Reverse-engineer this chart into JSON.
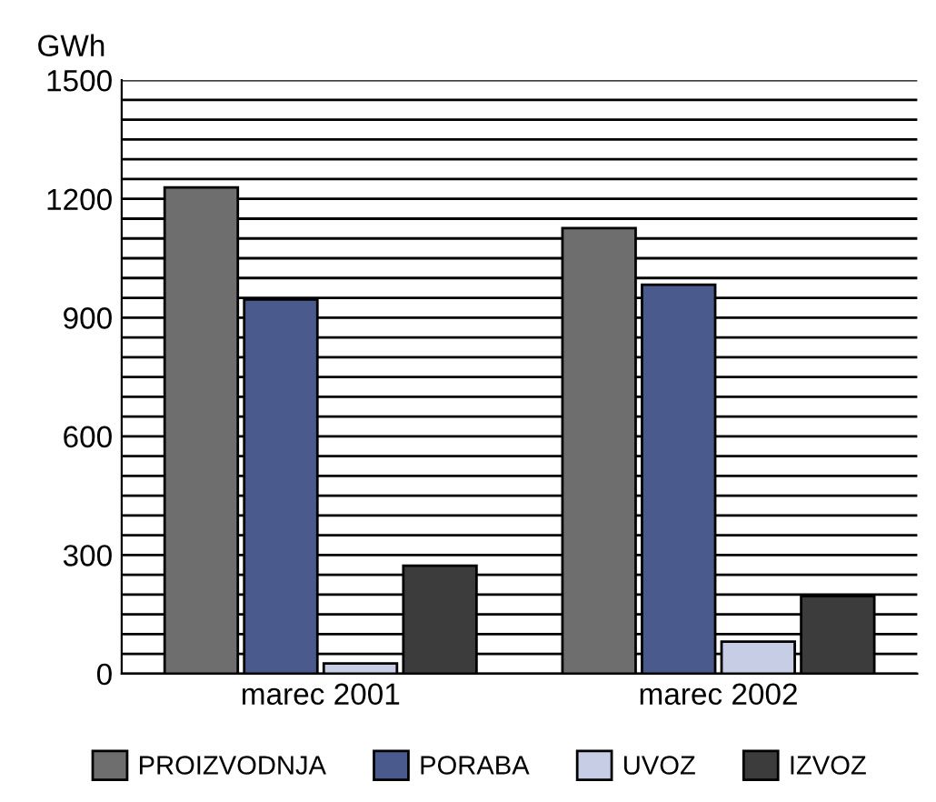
{
  "chart_data": {
    "type": "bar",
    "ylabel": "GWh",
    "categories": [
      "marec 2001",
      "marec 2002"
    ],
    "series": [
      {
        "name": "PROIZVODNJA",
        "color": "#6e6e6e",
        "values": [
          1229,
          1126
        ]
      },
      {
        "name": "PORABA",
        "color": "#4a5a8c",
        "values": [
          946,
          983
        ]
      },
      {
        "name": "UVOZ",
        "color": "#c8cde6",
        "values": [
          26,
          81
        ]
      },
      {
        "name": "IZVOZ",
        "color": "#3c3c3c",
        "values": [
          273,
          196
        ]
      }
    ],
    "ylim": [
      0,
      1500
    ],
    "yticks": [
      0,
      {
        "value": 50,
        "label": null
      },
      {
        "value": 100,
        "label": null
      },
      {
        "value": 150,
        "label": null
      },
      {
        "value": 200,
        "label": null
      },
      {
        "value": 250,
        "label": null
      },
      300,
      {
        "value": 350,
        "label": null
      },
      {
        "value": 400,
        "label": null
      },
      {
        "value": 450,
        "label": null
      },
      {
        "value": 500,
        "label": null
      },
      {
        "value": 550,
        "label": null
      },
      600,
      {
        "value": 650,
        "label": null
      },
      {
        "value": 700,
        "label": null
      },
      {
        "value": 750,
        "label": null
      },
      {
        "value": 800,
        "label": null
      },
      {
        "value": 850,
        "label": null
      },
      900,
      {
        "value": 950,
        "label": null
      },
      {
        "value": 1000,
        "label": null
      },
      {
        "value": 1050,
        "label": null
      },
      {
        "value": 1100,
        "label": null
      },
      {
        "value": 1150,
        "label": null
      },
      1200,
      {
        "value": 1250,
        "label": null
      },
      {
        "value": 1300,
        "label": null
      },
      {
        "value": 1350,
        "label": null
      },
      {
        "value": 1400,
        "label": null
      },
      {
        "value": 1450,
        "label": null
      },
      1500
    ],
    "grid": "y",
    "legend": "bottom"
  }
}
